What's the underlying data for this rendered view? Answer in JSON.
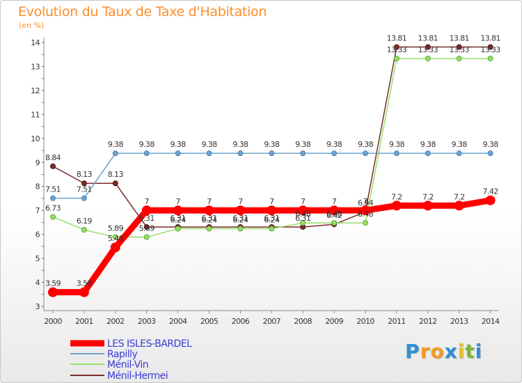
{
  "chart_data": {
    "type": "line",
    "title": "Evolution du Taux de Taxe d'Habitation",
    "unit_label": "(en %)",
    "x": [
      "2000",
      "2001",
      "2002",
      "2003",
      "2004",
      "2005",
      "2006",
      "2007",
      "2008",
      "2009",
      "2010",
      "2011",
      "2012",
      "2013",
      "2014"
    ],
    "y_ticks": [
      "3",
      "4",
      "5",
      "6",
      "7",
      "8",
      "9",
      "10",
      "11",
      "12",
      "13",
      "14"
    ],
    "ylim": [
      3,
      14
    ],
    "grid": false,
    "legend_position": "bottom-left",
    "series": [
      {
        "name": "LES ISLES-BARDEL",
        "color": "#ff0000",
        "values": [
          3.59,
          3.59,
          5.46,
          7,
          7,
          7,
          7,
          7,
          7,
          7,
          7,
          7.2,
          7.2,
          7.2,
          7.42
        ],
        "labels": [
          "3.59",
          "3.59",
          "5.46",
          "7",
          "7",
          "7",
          "7",
          "7",
          "7",
          "7",
          "7",
          "7.2",
          "7.2",
          "7.2",
          "7.42"
        ]
      },
      {
        "name": "Rapilly",
        "color": "#6fa2cc",
        "values": [
          7.51,
          7.51,
          9.38,
          9.38,
          9.38,
          9.38,
          9.38,
          9.38,
          9.38,
          9.38,
          9.38,
          9.38,
          9.38,
          9.38,
          9.38
        ],
        "labels": [
          "7.51",
          "7.51",
          "9.38",
          "9.38",
          "9.38",
          "9.38",
          "9.38",
          "9.38",
          "9.38",
          "9.38",
          "9.38",
          "9.38",
          "9.38",
          "9.38",
          "9.38"
        ]
      },
      {
        "name": "Ménil-Vin",
        "color": "#99dd66",
        "values": [
          6.73,
          6.19,
          5.89,
          5.89,
          6.24,
          6.24,
          6.24,
          6.24,
          6.48,
          6.48,
          6.48,
          13.33,
          13.33,
          13.33,
          13.33
        ],
        "labels": [
          "6.73",
          "6.19",
          "5.89",
          "5.89",
          "6.24",
          "6.24",
          "6.24",
          "6.24",
          "6.48",
          "6.48",
          "6.48",
          "13.33",
          "13.33",
          "13.33",
          "13.33"
        ]
      },
      {
        "name": "Ménil-Hermei",
        "color": "#7b2b2b",
        "values": [
          8.84,
          8.13,
          8.13,
          6.31,
          6.31,
          6.31,
          6.31,
          6.31,
          6.31,
          6.42,
          6.94,
          13.81,
          13.81,
          13.81,
          13.81
        ],
        "labels": [
          "8.84",
          "8.13",
          "8.13",
          "6.31",
          "6.31",
          "6.31",
          "6.31",
          "6.31",
          "6.31",
          "6.42",
          "6.94",
          "13.81",
          "13.81",
          "13.81",
          "13.81"
        ]
      }
    ]
  },
  "logo": {
    "letters": [
      "P",
      "r",
      "o",
      "x",
      "i",
      "t",
      "i"
    ],
    "colors": [
      "#2d8fd8",
      "#f39a1c",
      "#f39a1c",
      "#2d8fd8",
      "#e8c21e",
      "#77b62d",
      "#2d8fd8"
    ]
  }
}
